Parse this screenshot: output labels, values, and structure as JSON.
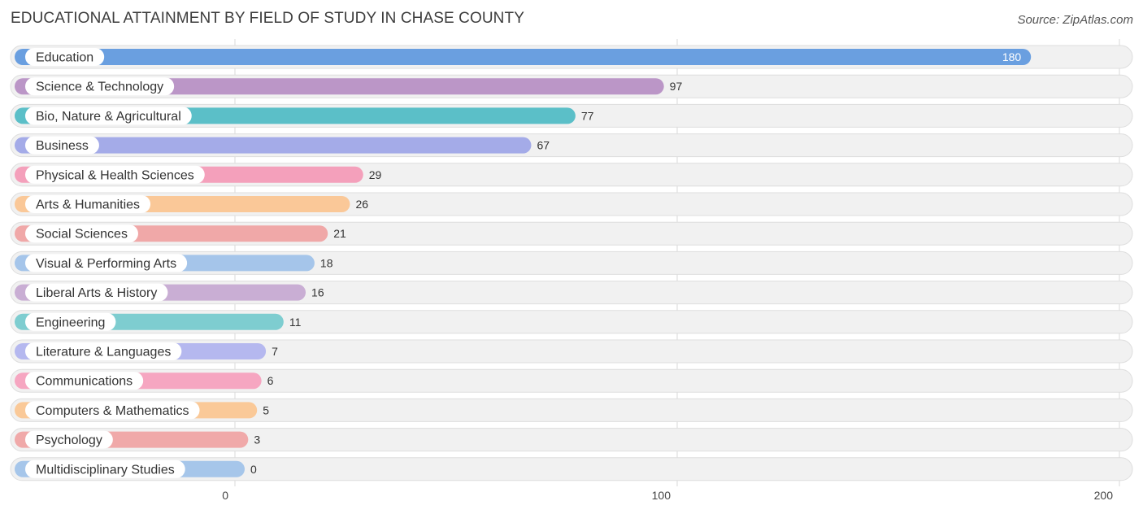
{
  "header": {
    "title": "EDUCATIONAL ATTAINMENT BY FIELD OF STUDY IN CHASE COUNTY",
    "source": "Source: ZipAtlas.com"
  },
  "chart_data": {
    "type": "bar",
    "orientation": "horizontal",
    "title": "EDUCATIONAL ATTAINMENT BY FIELD OF STUDY IN CHASE COUNTY",
    "categories": [
      "Education",
      "Science & Technology",
      "Bio, Nature & Agricultural",
      "Business",
      "Physical & Health Sciences",
      "Arts & Humanities",
      "Social Sciences",
      "Visual & Performing Arts",
      "Liberal Arts & History",
      "Engineering",
      "Literature & Languages",
      "Communications",
      "Computers & Mathematics",
      "Psychology",
      "Multidisciplinary Studies"
    ],
    "values": [
      180,
      97,
      77,
      67,
      29,
      26,
      21,
      18,
      16,
      11,
      7,
      6,
      5,
      3,
      0
    ],
    "value_labels": [
      "180",
      "97",
      "77",
      "67",
      "29",
      "26",
      "21",
      "18",
      "16",
      "11",
      "7",
      "6",
      "5",
      "3",
      "0"
    ],
    "colors": [
      "#6a9fe0",
      "#bb96c7",
      "#5bbfc8",
      "#a4abe8",
      "#f4a0bb",
      "#fac898",
      "#f0a8a8",
      "#a5c5ea",
      "#c9aed4",
      "#7ecdd0",
      "#b5b8ef",
      "#f6a6c1",
      "#fac998",
      "#f0a9a9",
      "#a6c6ea"
    ],
    "xlim": [
      0,
      200
    ],
    "xticks": [
      0,
      100,
      200
    ],
    "xtick_labels": [
      "0",
      "100",
      "200"
    ],
    "grid": true,
    "legend": "none"
  }
}
